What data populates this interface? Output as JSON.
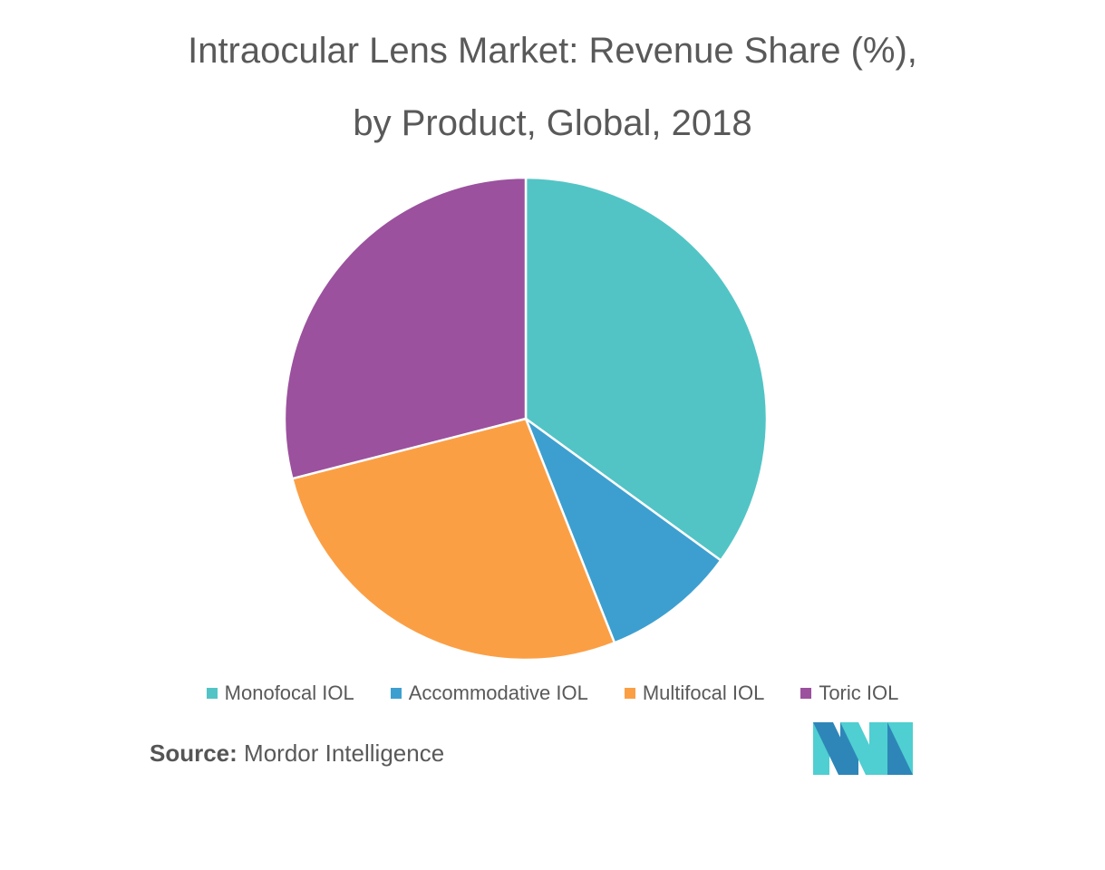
{
  "chart_data": {
    "type": "pie",
    "title_line1": "Intraocular Lens Market: Revenue Share (%),",
    "title_line2": "by Product, Global, 2018",
    "categories": [
      "Monofocal IOL",
      "Accommodative IOL",
      "Multifocal IOL",
      "Toric IOL"
    ],
    "values": [
      35,
      9,
      27,
      29
    ],
    "colors": [
      "#52c4c6",
      "#3d9fd0",
      "#fb9f45",
      "#9b519e"
    ],
    "legend_position": "bottom"
  },
  "source": {
    "label": "Source:",
    "text": "Mordor Intelligence"
  },
  "logo": {
    "icon": "mordor-intelligence-logo-icon",
    "colors": [
      "#2e86b8",
      "#4fcfd1"
    ]
  }
}
